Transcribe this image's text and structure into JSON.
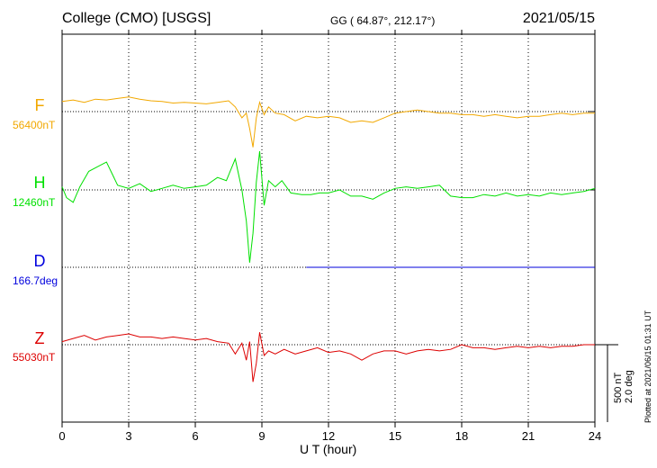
{
  "header": {
    "station": "College (CMO)  [USGS]",
    "coords": "GG ( 64.87°, 212.17°)",
    "date": "2021/05/15"
  },
  "scale": {
    "nt": "500 nT",
    "deg": "2.0 deg"
  },
  "plotted": "Plotted at 2021/06/15 01:31  UT",
  "colors": {
    "F": "#f2a800",
    "H": "#00e000",
    "D": "#0000dd",
    "Z": "#dd0000"
  },
  "chart_data": {
    "type": "line",
    "xlabel": "U T (hour)",
    "xlim": [
      0,
      24
    ],
    "xticks": [
      "0",
      "3",
      "6",
      "9",
      "12",
      "15",
      "18",
      "21",
      "24"
    ],
    "grid": true,
    "scale_bar": "500 nT / 2.0 deg",
    "series": [
      {
        "name": "F",
        "baseline_label": "56400nT",
        "unit": "nT",
        "baseline": 56400,
        "x": [
          0,
          0.5,
          1,
          1.5,
          2,
          2.5,
          3,
          3.5,
          4,
          4.5,
          5,
          5.5,
          6,
          6.5,
          7,
          7.5,
          7.8,
          8.1,
          8.3,
          8.45,
          8.6,
          8.75,
          8.9,
          9.1,
          9.3,
          9.6,
          10,
          10.5,
          11,
          11.5,
          12,
          12.5,
          13,
          13.5,
          14,
          14.5,
          15,
          15.5,
          16,
          16.5,
          17,
          17.5,
          18,
          18.5,
          19,
          19.5,
          20,
          20.5,
          21,
          21.5,
          22,
          22.5,
          23,
          23.5,
          24
        ],
        "y": [
          65,
          75,
          60,
          80,
          75,
          85,
          95,
          80,
          70,
          65,
          55,
          60,
          55,
          50,
          60,
          70,
          30,
          -40,
          -10,
          -110,
          -230,
          -40,
          60,
          -20,
          30,
          -10,
          -20,
          -60,
          -30,
          -40,
          -30,
          -40,
          -70,
          -60,
          -70,
          -40,
          -10,
          0,
          10,
          0,
          -10,
          -10,
          -20,
          -20,
          -30,
          -20,
          -30,
          -40,
          -30,
          -30,
          -20,
          -10,
          -20,
          -10,
          -10
        ]
      },
      {
        "name": "H",
        "baseline_label": "12460nT",
        "unit": "nT",
        "baseline": 12460,
        "x": [
          0,
          0.2,
          0.5,
          0.8,
          1.2,
          1.6,
          2,
          2.5,
          3,
          3.5,
          4,
          4.5,
          5,
          5.5,
          6,
          6.5,
          7,
          7.4,
          7.8,
          8.1,
          8.3,
          8.45,
          8.6,
          8.75,
          8.9,
          9.1,
          9.3,
          9.6,
          9.9,
          10.3,
          10.8,
          11.2,
          11.6,
          12,
          12.5,
          13,
          13.5,
          14,
          14.5,
          15,
          15.5,
          16,
          16.5,
          17,
          17.5,
          18,
          18.5,
          19,
          19.5,
          20,
          20.5,
          21,
          21.5,
          22,
          22.5,
          23,
          23.5,
          24
        ],
        "y": [
          20,
          -50,
          -80,
          20,
          120,
          150,
          180,
          30,
          10,
          40,
          -10,
          10,
          30,
          10,
          20,
          30,
          80,
          60,
          200,
          0,
          -200,
          -470,
          -280,
          50,
          250,
          -100,
          60,
          20,
          60,
          -20,
          -30,
          -30,
          -20,
          -20,
          0,
          -40,
          -40,
          -60,
          -20,
          10,
          20,
          10,
          20,
          30,
          -40,
          -50,
          -50,
          -30,
          -40,
          -20,
          -40,
          -30,
          -40,
          -20,
          -30,
          -20,
          -10,
          10
        ]
      },
      {
        "name": "D",
        "baseline_label": "166.7deg",
        "unit": "deg",
        "baseline": 166.7,
        "x": [
          11,
          24
        ],
        "y": [
          0,
          0
        ]
      },
      {
        "name": "Z",
        "baseline_label": "55030nT",
        "unit": "nT",
        "baseline": 55030,
        "x": [
          0,
          0.5,
          1,
          1.5,
          2,
          2.5,
          3,
          3.5,
          4,
          4.5,
          5,
          5.5,
          6,
          6.5,
          7,
          7.5,
          7.8,
          8.1,
          8.3,
          8.45,
          8.6,
          8.75,
          8.9,
          9.1,
          9.3,
          9.6,
          10,
          10.5,
          11,
          11.5,
          12,
          12.5,
          13,
          13.5,
          14,
          14.5,
          15,
          15.5,
          16,
          16.5,
          17,
          17.5,
          18,
          18.5,
          19,
          19.5,
          20,
          20.5,
          21,
          21.5,
          22,
          22.5,
          23,
          23.5,
          24
        ],
        "y": [
          20,
          40,
          60,
          30,
          50,
          60,
          70,
          50,
          50,
          40,
          50,
          40,
          30,
          40,
          20,
          10,
          -60,
          10,
          -100,
          20,
          -240,
          -120,
          80,
          -70,
          -40,
          -60,
          -30,
          -60,
          -40,
          -20,
          -50,
          -40,
          -60,
          -100,
          -60,
          -40,
          -40,
          -60,
          -40,
          -30,
          -40,
          -30,
          0,
          -20,
          -20,
          -30,
          -20,
          -10,
          -20,
          -10,
          -20,
          -10,
          -10,
          0,
          0
        ]
      }
    ]
  }
}
